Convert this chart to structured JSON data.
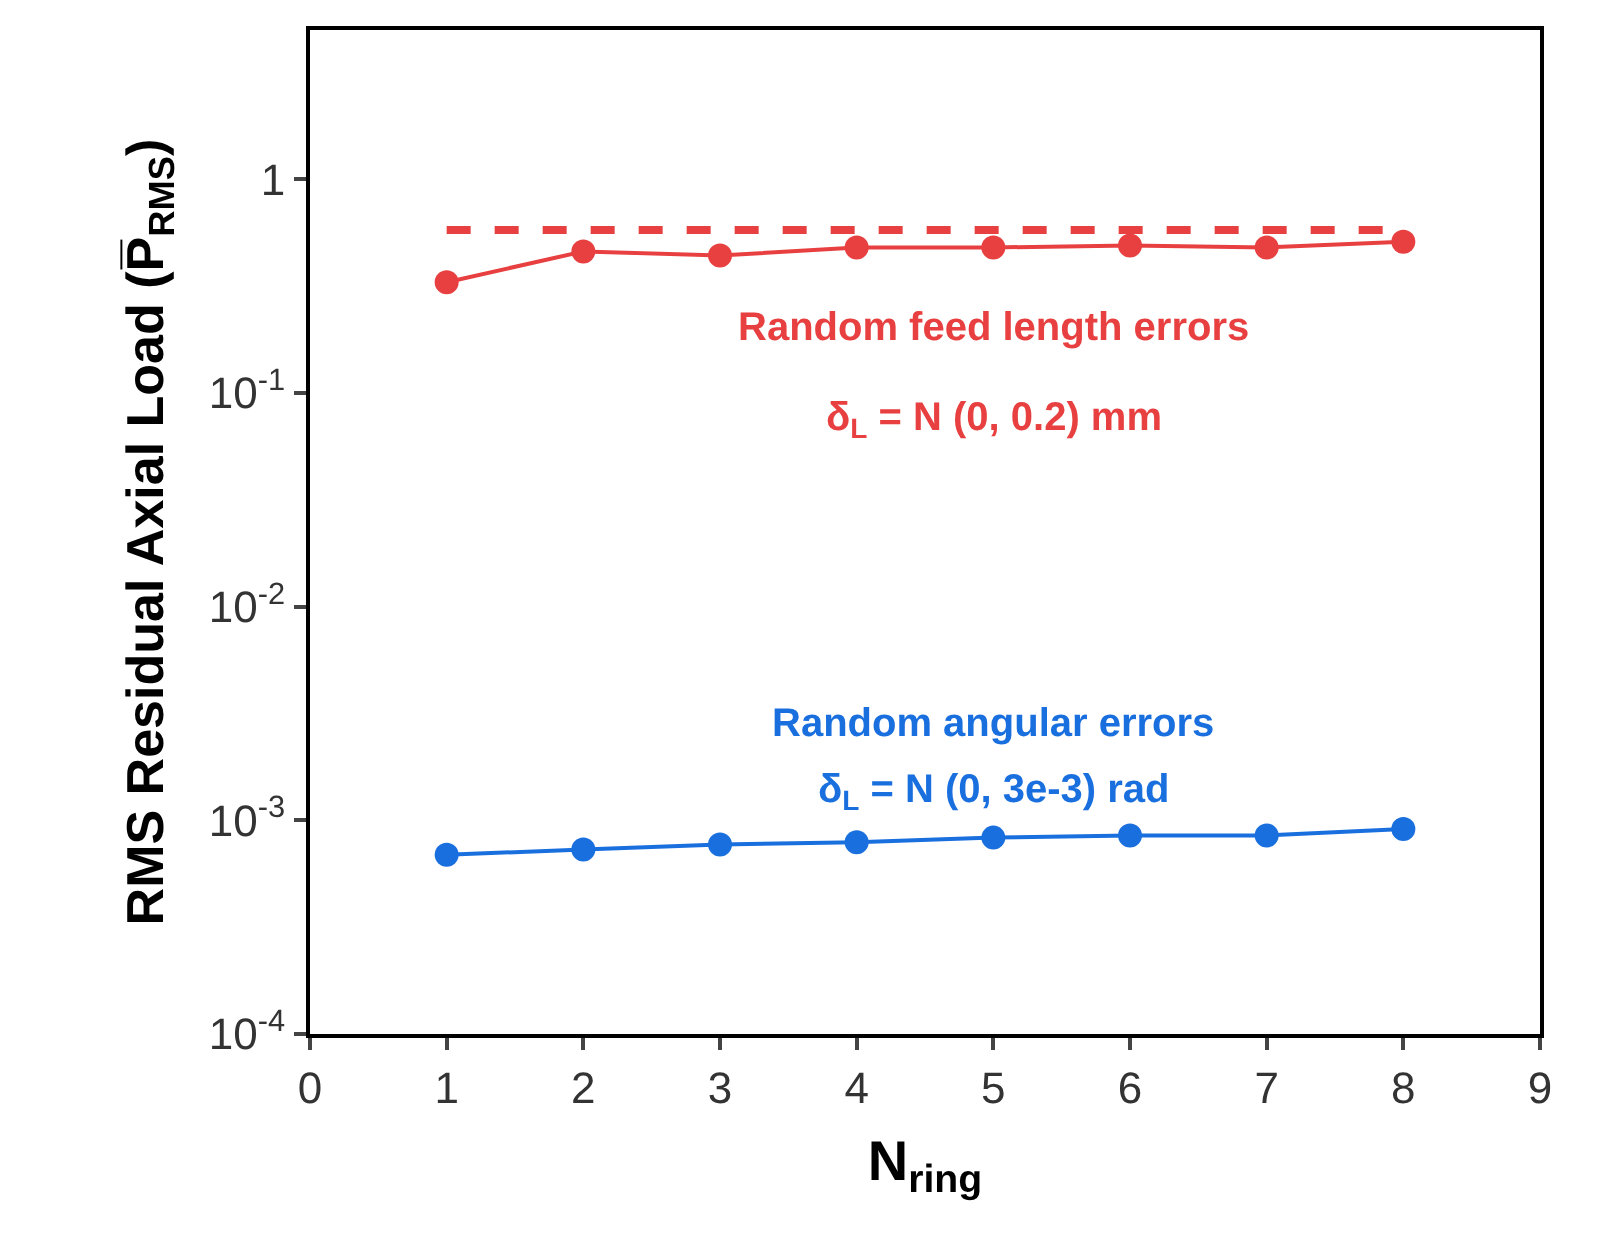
{
  "chart_data": {
    "type": "line",
    "xlabel": "N$_{ring}$",
    "ylabel": "RMS Residual Axial Load (P̅$_{RMS}$)",
    "xlim": [
      0,
      9
    ],
    "xticks": [
      0,
      1,
      2,
      3,
      4,
      5,
      6,
      7,
      8,
      9
    ],
    "ylim": [
      0.0001,
      5
    ],
    "yticks": [
      {
        "value": 0.0001,
        "label": "10$^{-4}$"
      },
      {
        "value": 0.001,
        "label": "10$^{-3}$"
      },
      {
        "value": 0.01,
        "label": "10$^{-2}$"
      },
      {
        "value": 0.1,
        "label": "10$^{-1}$"
      },
      1
    ],
    "log": "y",
    "legend": false,
    "marker": "circle",
    "line_style": "solid",
    "series": [
      {
        "name": "Random feed length errors",
        "color": "#e84040",
        "x": [
          1,
          2,
          3,
          4,
          5,
          6,
          7,
          8
        ],
        "values": [
          0.33,
          0.46,
          0.44,
          0.48,
          0.48,
          0.49,
          0.48,
          0.51
        ]
      },
      {
        "color": "#e84040",
        "x": [
          1,
          8
        ],
        "values": [
          0.58,
          0.58
        ],
        "marker": "none",
        "line_style": "dashed"
      },
      {
        "name": "Random angular errors",
        "color": "#1a6fdf",
        "x": [
          1,
          2,
          3,
          4,
          5,
          6,
          7,
          8
        ],
        "values": [
          0.00069,
          0.00073,
          0.00077,
          0.00079,
          0.00083,
          0.00085,
          0.00085,
          0.00091
        ]
      }
    ],
    "annotations": [
      "δ$_{L}$ = N (0, 0.2) mm",
      "δ$_{L}$ = N (0, 3e-3) rad"
    ]
  }
}
